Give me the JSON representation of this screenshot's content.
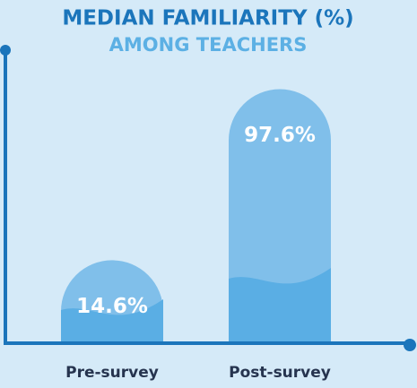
{
  "chart_data": {
    "type": "bar",
    "title": "MEDIAN FAMILIARITY (%)",
    "subtitle": "AMONG TEACHERS",
    "categories": [
      "Pre-survey",
      "Post-survey"
    ],
    "values": [
      14.6,
      97.6
    ],
    "value_labels": [
      "14.6%",
      "97.6%"
    ],
    "color": "#80bfea",
    "ylim": [
      0,
      100
    ]
  }
}
